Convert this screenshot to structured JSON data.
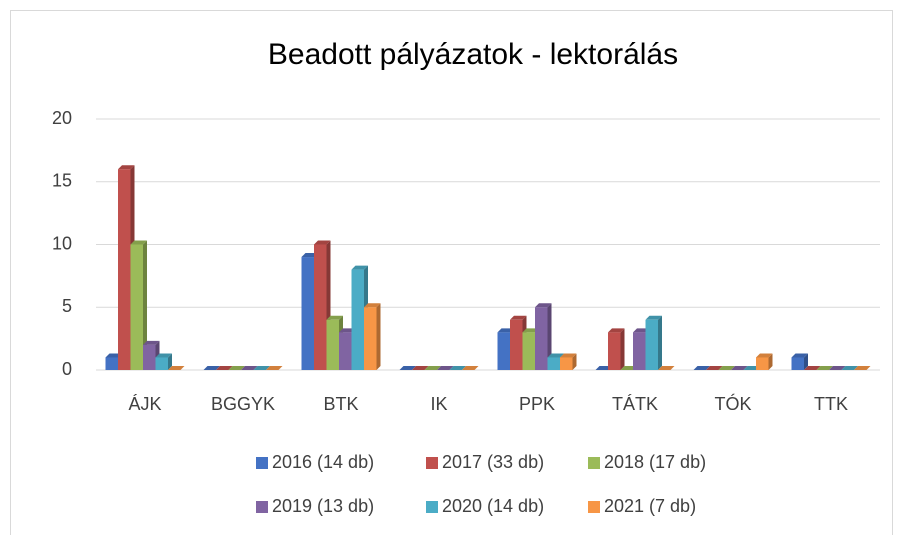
{
  "chart_data": {
    "type": "bar",
    "title": "Beadott pályázatok - lektorálás",
    "categories": [
      "ÁJK",
      "BGGYK",
      "BTK",
      "IK",
      "PPK",
      "TÁTK",
      "TÓK",
      "TTK"
    ],
    "series": [
      {
        "name": "2016 (14 db)",
        "color": "#4472c4",
        "values": [
          1,
          0,
          9,
          0,
          3,
          0,
          0,
          1
        ]
      },
      {
        "name": "2017 (33 db)",
        "color": "#c0504d",
        "values": [
          16,
          0,
          10,
          0,
          4,
          3,
          0,
          0
        ]
      },
      {
        "name": "2018 (17 db)",
        "color": "#9bbb59",
        "values": [
          10,
          0,
          4,
          0,
          3,
          0,
          0,
          0
        ]
      },
      {
        "name": "2019 (13 db)",
        "color": "#8064a2",
        "values": [
          2,
          0,
          3,
          0,
          5,
          3,
          0,
          0
        ]
      },
      {
        "name": "2020 (14 db)",
        "color": "#4bacc6",
        "values": [
          1,
          0,
          8,
          0,
          1,
          4,
          0,
          0
        ]
      },
      {
        "name": "2021 (7 db)",
        "color": "#f79646",
        "values": [
          0,
          0,
          5,
          0,
          1,
          0,
          1,
          0
        ]
      }
    ],
    "ylim": [
      0,
      20
    ],
    "yticks": [
      0,
      5,
      10,
      15,
      20
    ],
    "grid": true,
    "legend": "bottom"
  }
}
